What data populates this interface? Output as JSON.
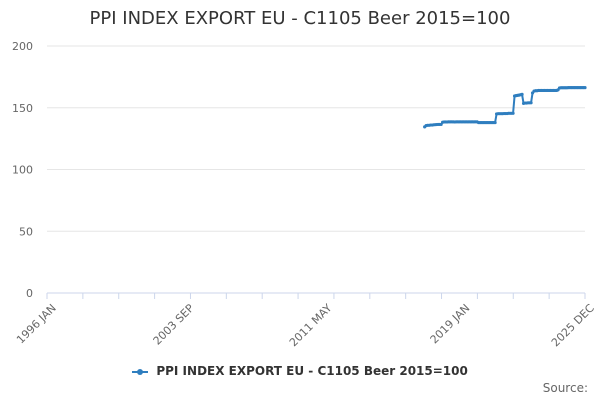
{
  "colors": {
    "series": "#2f7ebf",
    "grid": "#e6e6e6",
    "axis": "#ccd6eb"
  },
  "source_label": "Source:",
  "chart_data": {
    "type": "line",
    "title": "PPI INDEX EXPORT EU - C1105 Beer 2015=100",
    "xlabel": "",
    "ylabel": "",
    "xlim": [
      "1996-01",
      "2025-12"
    ],
    "ylim": [
      0,
      200
    ],
    "y_ticks": [
      0,
      50,
      100,
      150,
      200
    ],
    "x_tick_labels": [
      "1996 JAN",
      "2003 SEP",
      "2011 MAY",
      "2019 JAN",
      "2025 DEC"
    ],
    "grid": "horizontal",
    "legend_position": "bottom-center",
    "series": [
      {
        "name": "PPI INDEX EXPORT EU - C1105 Beer 2015=100",
        "points": [
          [
            "2017-01",
            134.5
          ],
          [
            "2017-02",
            135.5
          ],
          [
            "2017-03",
            135.8
          ],
          [
            "2017-04",
            135.8
          ],
          [
            "2017-05",
            136.0
          ],
          [
            "2017-06",
            136.0
          ],
          [
            "2017-07",
            136.2
          ],
          [
            "2017-08",
            136.3
          ],
          [
            "2017-09",
            136.4
          ],
          [
            "2017-10",
            136.5
          ],
          [
            "2017-11",
            136.5
          ],
          [
            "2017-12",
            136.5
          ],
          [
            "2018-01",
            138.3
          ],
          [
            "2018-02",
            138.5
          ],
          [
            "2018-03",
            138.5
          ],
          [
            "2018-04",
            138.5
          ],
          [
            "2018-05",
            138.6
          ],
          [
            "2018-06",
            138.6
          ],
          [
            "2018-07",
            138.6
          ],
          [
            "2018-08",
            138.6
          ],
          [
            "2018-09",
            138.5
          ],
          [
            "2018-10",
            138.6
          ],
          [
            "2018-11",
            138.6
          ],
          [
            "2018-12",
            138.6
          ],
          [
            "2019-01",
            138.6
          ],
          [
            "2019-02",
            138.6
          ],
          [
            "2019-03",
            138.6
          ],
          [
            "2019-04",
            138.6
          ],
          [
            "2019-05",
            138.6
          ],
          [
            "2019-06",
            138.6
          ],
          [
            "2019-07",
            138.6
          ],
          [
            "2019-08",
            138.6
          ],
          [
            "2019-09",
            138.6
          ],
          [
            "2019-10",
            138.6
          ],
          [
            "2019-11",
            138.6
          ],
          [
            "2019-12",
            138.6
          ],
          [
            "2020-01",
            138.0
          ],
          [
            "2020-02",
            138.0
          ],
          [
            "2020-03",
            138.0
          ],
          [
            "2020-04",
            138.0
          ],
          [
            "2020-05",
            138.0
          ],
          [
            "2020-06",
            138.0
          ],
          [
            "2020-07",
            138.0
          ],
          [
            "2020-08",
            138.0
          ],
          [
            "2020-09",
            138.0
          ],
          [
            "2020-10",
            138.0
          ],
          [
            "2020-11",
            138.0
          ],
          [
            "2020-12",
            138.0
          ],
          [
            "2021-01",
            145.0
          ],
          [
            "2021-02",
            145.2
          ],
          [
            "2021-03",
            145.2
          ],
          [
            "2021-04",
            145.2
          ],
          [
            "2021-05",
            145.2
          ],
          [
            "2021-06",
            145.3
          ],
          [
            "2021-07",
            145.3
          ],
          [
            "2021-08",
            145.3
          ],
          [
            "2021-09",
            145.5
          ],
          [
            "2021-10",
            145.5
          ],
          [
            "2021-11",
            145.5
          ],
          [
            "2021-12",
            145.5
          ],
          [
            "2022-01",
            159.5
          ],
          [
            "2022-02",
            159.8
          ],
          [
            "2022-03",
            160.0
          ],
          [
            "2022-04",
            160.2
          ],
          [
            "2022-05",
            160.5
          ],
          [
            "2022-06",
            160.8
          ],
          [
            "2022-07",
            153.5
          ],
          [
            "2022-08",
            153.8
          ],
          [
            "2022-09",
            153.8
          ],
          [
            "2022-10",
            154.0
          ],
          [
            "2022-11",
            154.0
          ],
          [
            "2022-12",
            154.0
          ],
          [
            "2023-01",
            162.0
          ],
          [
            "2023-02",
            163.5
          ],
          [
            "2023-03",
            163.8
          ],
          [
            "2023-04",
            163.8
          ],
          [
            "2023-05",
            164.0
          ],
          [
            "2023-06",
            164.0
          ],
          [
            "2023-07",
            164.0
          ],
          [
            "2023-08",
            164.0
          ],
          [
            "2023-09",
            164.0
          ],
          [
            "2023-10",
            164.0
          ],
          [
            "2023-11",
            164.0
          ],
          [
            "2023-12",
            164.0
          ],
          [
            "2024-01",
            164.0
          ],
          [
            "2024-02",
            164.0
          ],
          [
            "2024-03",
            164.0
          ],
          [
            "2024-04",
            164.0
          ],
          [
            "2024-05",
            164.0
          ],
          [
            "2024-06",
            164.5
          ],
          [
            "2024-07",
            166.0
          ],
          [
            "2024-08",
            166.2
          ],
          [
            "2024-09",
            166.2
          ],
          [
            "2024-10",
            166.2
          ],
          [
            "2024-11",
            166.2
          ],
          [
            "2024-12",
            166.2
          ],
          [
            "2025-01",
            166.3
          ],
          [
            "2025-02",
            166.3
          ],
          [
            "2025-03",
            166.3
          ],
          [
            "2025-04",
            166.3
          ],
          [
            "2025-05",
            166.3
          ],
          [
            "2025-06",
            166.3
          ],
          [
            "2025-07",
            166.3
          ],
          [
            "2025-08",
            166.3
          ],
          [
            "2025-09",
            166.3
          ],
          [
            "2025-10",
            166.3
          ],
          [
            "2025-11",
            166.3
          ],
          [
            "2025-12",
            166.3
          ]
        ]
      }
    ]
  }
}
